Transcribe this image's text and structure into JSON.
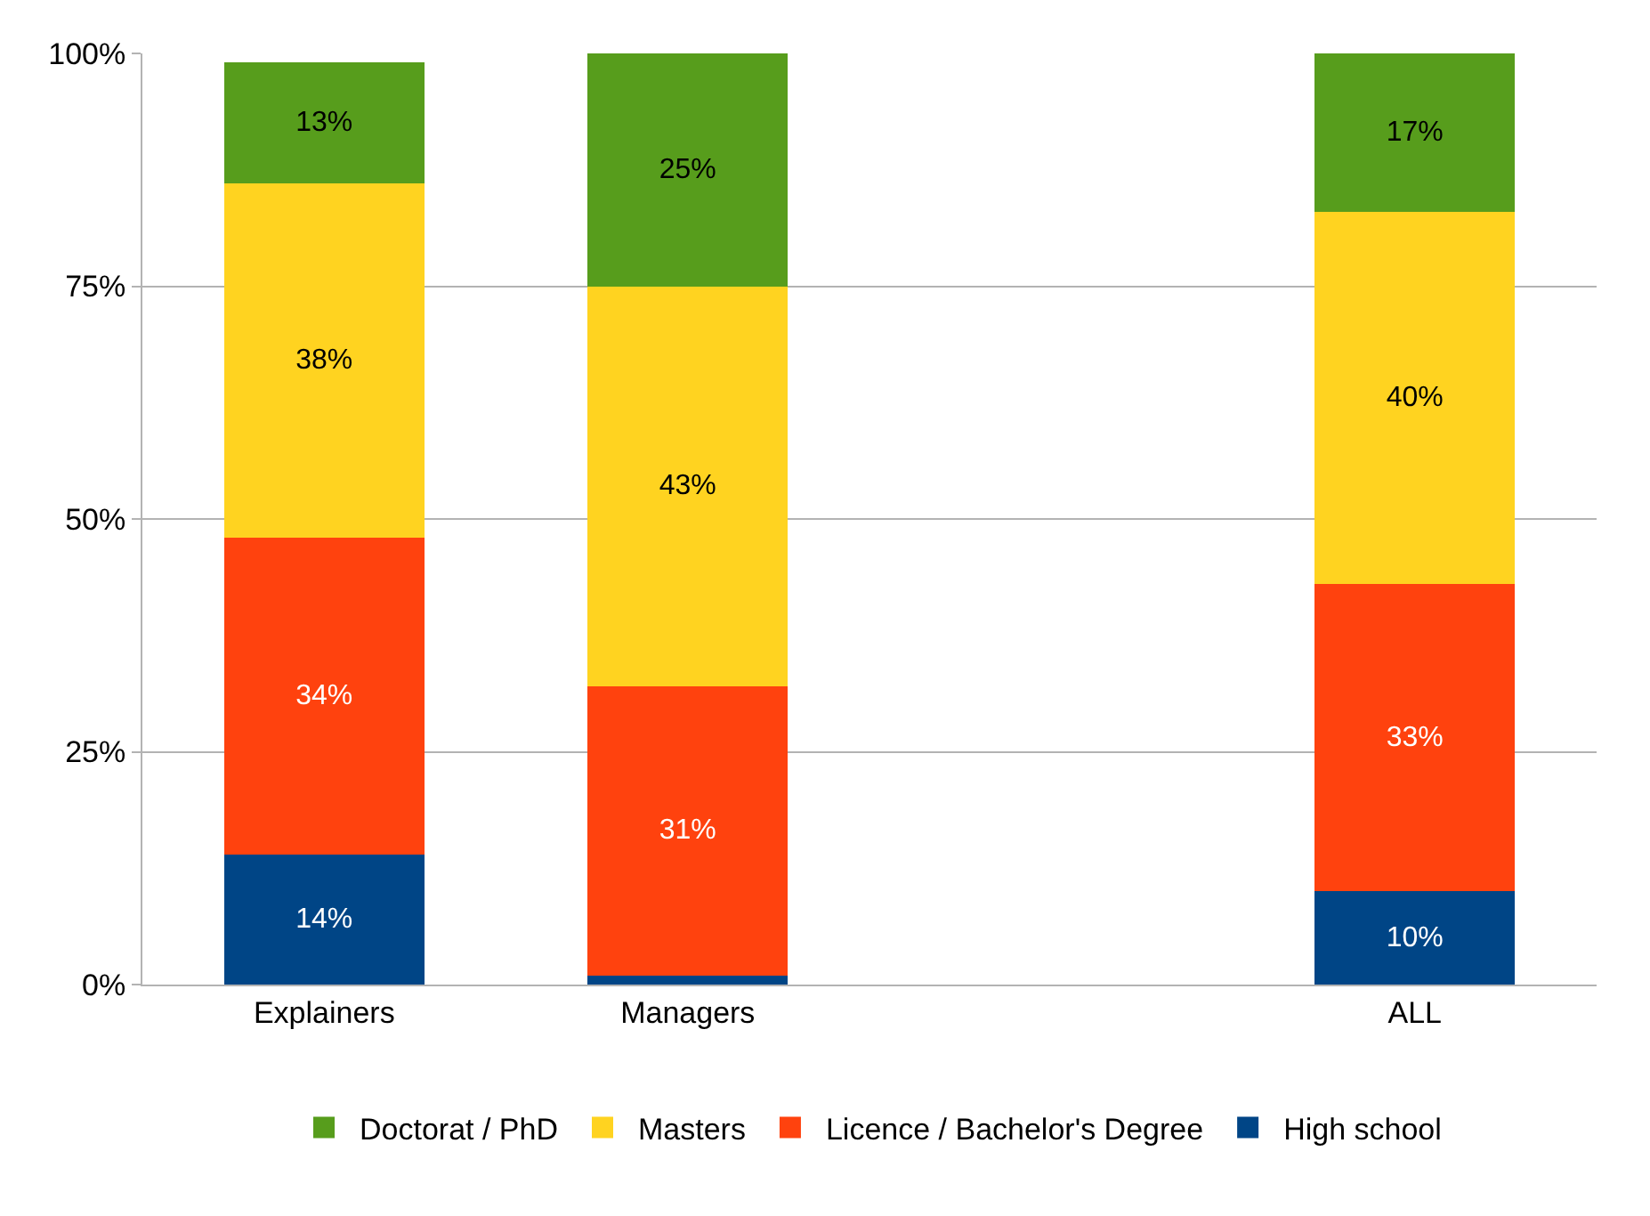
{
  "chart_data": {
    "type": "bar",
    "stacked": true,
    "categories": [
      "Explainers",
      "Managers",
      null,
      "ALL"
    ],
    "series": [
      {
        "name": "High school",
        "color": "#004586",
        "values": [
          14,
          1,
          null,
          10
        ],
        "value_labels": [
          "14%",
          null,
          null,
          "10%"
        ]
      },
      {
        "name": "Licence / Bachelor's Degree",
        "color": "#ff420e",
        "values": [
          34,
          31,
          null,
          33
        ],
        "value_labels": [
          "34%",
          "31%",
          null,
          "33%"
        ]
      },
      {
        "name": "Masters",
        "color": "#ffd320",
        "values": [
          38,
          43,
          null,
          40
        ],
        "value_labels": [
          "38%",
          "43%",
          null,
          "40%"
        ]
      },
      {
        "name": "Doctorat / PhD",
        "color": "#579d1c",
        "values": [
          13,
          25,
          null,
          17
        ],
        "value_labels": [
          "13%",
          "25%",
          null,
          "17%"
        ]
      }
    ],
    "ylim": [
      0,
      100
    ],
    "yticks": [
      {
        "value": 0,
        "label": "0%"
      },
      {
        "value": 25,
        "label": "25%"
      },
      {
        "value": 50,
        "label": "50%"
      },
      {
        "value": 75,
        "label": "75%"
      },
      {
        "value": 100,
        "label": "100%"
      }
    ],
    "grid": "y",
    "legend": "bottom"
  }
}
